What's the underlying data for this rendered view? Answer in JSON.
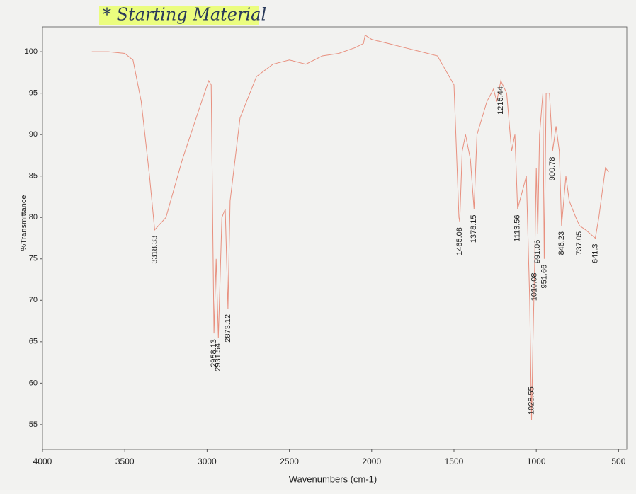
{
  "chart_data": {
    "type": "line",
    "annotation": "* Starting Material",
    "x_label": "Wavenumbers (cm-1)",
    "y_label": "%Transmittance",
    "color": "#e8907f",
    "x": [
      3700,
      3600,
      3500,
      3450,
      3400,
      3350,
      3318.33,
      3250,
      3150,
      3050,
      2990,
      2975,
      2958.13,
      2945,
      2931.54,
      2910,
      2890,
      2873.12,
      2860,
      2800,
      2700,
      2600,
      2500,
      2400,
      2300,
      2200,
      2100,
      2050,
      2040,
      2000,
      1900,
      1800,
      1700,
      1600,
      1500,
      1470,
      1465.08,
      1450,
      1430,
      1400,
      1378.15,
      1360,
      1300,
      1260,
      1240,
      1215.44,
      1180,
      1150,
      1130,
      1113.56,
      1100,
      1060,
      1040,
      1028.55,
      1020,
      1010.08,
      1000,
      991.06,
      980,
      960,
      951.66,
      940,
      920,
      900.78,
      880,
      860,
      846.23,
      820,
      800,
      760,
      737.05,
      700,
      641.3,
      620,
      580,
      560
    ],
    "values": [
      100,
      100,
      99.8,
      99,
      94,
      85,
      78.5,
      80,
      87,
      93,
      96.5,
      96,
      66,
      75,
      65.5,
      80,
      81,
      69,
      82,
      92,
      97,
      98.5,
      99,
      98.5,
      99.5,
      99.8,
      100.5,
      101,
      102,
      101.5,
      101,
      100.5,
      100,
      99.5,
      96,
      80,
      79.5,
      88,
      90,
      87,
      81,
      90,
      94,
      95.5,
      94,
      96.5,
      95,
      88,
      90,
      81,
      82,
      85,
      70,
      55.5,
      65,
      74,
      86,
      78,
      90,
      95,
      75,
      95,
      95,
      88,
      91,
      88,
      79,
      85,
      82,
      80,
      79,
      78.5,
      77.5,
      80,
      86,
      85.5
    ],
    "peaks": {
      "x": [
        3318.33,
        2958.13,
        2931.54,
        2873.12,
        1465.08,
        1378.15,
        1215.44,
        1113.56,
        1028.55,
        1010.08,
        991.06,
        951.66,
        900.78,
        846.23,
        737.05,
        641.3
      ],
      "y": [
        78.5,
        66,
        65.5,
        69,
        79.5,
        81,
        96.5,
        81,
        55.5,
        74,
        78,
        75,
        88,
        79,
        79,
        77.5
      ]
    },
    "xlim": [
      4000,
      450
    ],
    "xticks": [
      4000,
      3500,
      3000,
      2500,
      2000,
      1500,
      1000,
      500
    ],
    "ylim": [
      52,
      103
    ],
    "yticks": [
      55,
      60,
      65,
      70,
      75,
      80,
      85,
      90,
      95,
      100
    ]
  }
}
